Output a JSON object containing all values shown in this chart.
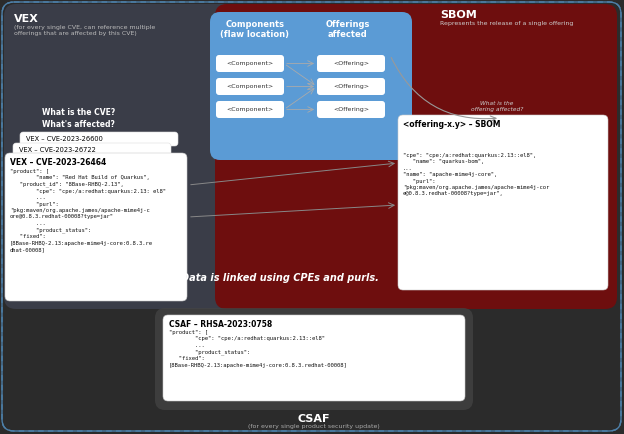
{
  "bg_color": "#2b2b2b",
  "vex_region_color": "#3a3d4a",
  "sbom_region_color": "#7a0f0f",
  "blue_box_color": "#5b9bd5",
  "arrow_color": "#888888",
  "vex_title": "VEX",
  "vex_subtitle": "(for every single CVE, can reference multiple\nofferings that are affected by this CVE)",
  "sbom_title": "SBOM",
  "sbom_subtitle": "Represents the release of a single offering",
  "csaf_title": "CSAF",
  "csaf_subtitle": "(for every single product security update)",
  "components_title": "Components\n(flaw location)",
  "offerings_title": "Offerings\naffected",
  "center_text": "Data is linked using CPEs and purls.",
  "what_is_cve": "What is the CVE?\nWhat's affected?",
  "vex_card1_title": "VEX – CVE-2023-26600",
  "vex_card2_title": "VEX – CVE-2023-26722",
  "vex_card3_title": "VEX – CVE-2023-26464",
  "vex_card3_body": "\"product\": [\n        \"name\": \"Red Hat Build of Quarkus\",\n   \"product_id\": \"8Base-RHBQ-2.13\",\n        \"cpe\": \"cpe:/a:redhat:quarkus:2.13: el8\"\n        ...\n        \"purl\":\n\"pkg:maven/org.apache.james/apache-mime4j-c\nore@0.8.3.redhat-00008?type=jar\"\n        ...\n        \"product_status\":\n   \"fixed\":\n[8Base-RHBQ-2.13:apache-mime4j-core:0.8.3.re\ndhat-00008]",
  "sbom_card_title": "<offering-x.y> – SBOM",
  "sbom_card_body": "\n\n\"cpe\": \"cpe:/a:redhat:quarkus:2.13::el8\",\n   \"name\": \"quarkus-bom\",\n...\n\"name\": \"apache-mime4j-core\",\n   \"purl\":\n\"pkg:maven/org.apache.james/apache-mime4j-cor\ne@0.8.3.redhat-00008?type=jar\",",
  "csaf_card_title": "CSAF – RHSA-2023:0758",
  "csaf_card_body": "\"product\": [\n        \"cpe\": \"cpe:/a:redhat:quarkus:2.13::el8\"\n        ...\n        \"product_status\":\n   \"fixed\":\n[8Base-RHBQ-2.13:apache-mime4j-core:0.8.3.redhat-00008]",
  "what_is_the_offering": "What is the\noffering affected?"
}
